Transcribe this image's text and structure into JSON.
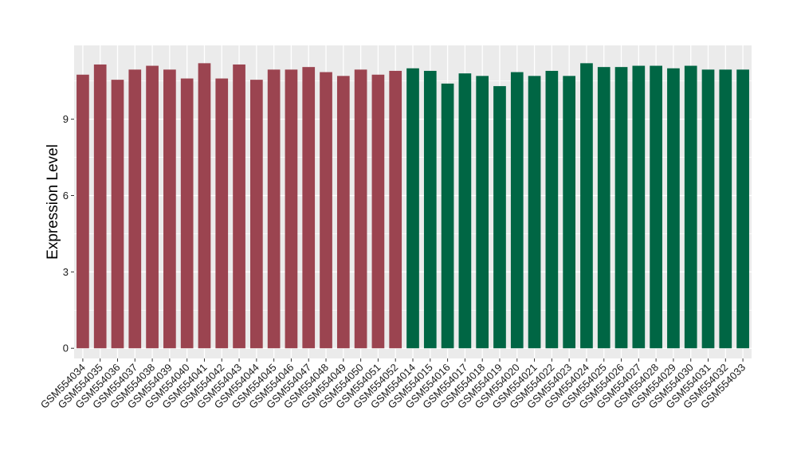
{
  "chart_data": {
    "type": "bar",
    "title": "",
    "xlabel": "",
    "ylabel": "Expression Level",
    "ylim": [
      -0.4,
      11.9
    ],
    "yticks": [
      0,
      3,
      6,
      9
    ],
    "grid": true,
    "legend": "none",
    "colors": {
      "panel": "#ebebeb",
      "grid": "#ffffff",
      "group_a": "#9b4450",
      "group_b": "#006644"
    },
    "categories": [
      "GSM554034",
      "GSM554035",
      "GSM554036",
      "GSM554037",
      "GSM554038",
      "GSM554039",
      "GSM554040",
      "GSM554041",
      "GSM554042",
      "GSM554043",
      "GSM554044",
      "GSM554045",
      "GSM554046",
      "GSM554047",
      "GSM554048",
      "GSM554049",
      "GSM554050",
      "GSM554051",
      "GSM554052",
      "GSM554014",
      "GSM554015",
      "GSM554016",
      "GSM554017",
      "GSM554018",
      "GSM554019",
      "GSM554020",
      "GSM554021",
      "GSM554022",
      "GSM554023",
      "GSM554024",
      "GSM554025",
      "GSM554026",
      "GSM554027",
      "GSM554028",
      "GSM554029",
      "GSM554030",
      "GSM554031",
      "GSM554032",
      "GSM554033"
    ],
    "values": [
      10.75,
      11.15,
      10.55,
      10.95,
      11.1,
      10.95,
      10.6,
      11.2,
      10.6,
      11.15,
      10.55,
      10.95,
      10.95,
      11.05,
      10.85,
      10.7,
      10.95,
      10.75,
      10.9,
      11.0,
      10.9,
      10.4,
      10.8,
      10.7,
      10.3,
      10.85,
      10.7,
      10.9,
      10.7,
      11.2,
      11.05,
      11.05,
      11.1,
      11.1,
      11.0,
      11.1,
      10.95,
      10.95,
      10.95
    ],
    "groups": [
      "a",
      "a",
      "a",
      "a",
      "a",
      "a",
      "a",
      "a",
      "a",
      "a",
      "a",
      "a",
      "a",
      "a",
      "a",
      "a",
      "a",
      "a",
      "a",
      "b",
      "b",
      "b",
      "b",
      "b",
      "b",
      "b",
      "b",
      "b",
      "b",
      "b",
      "b",
      "b",
      "b",
      "b",
      "b",
      "b",
      "b",
      "b",
      "b"
    ]
  }
}
